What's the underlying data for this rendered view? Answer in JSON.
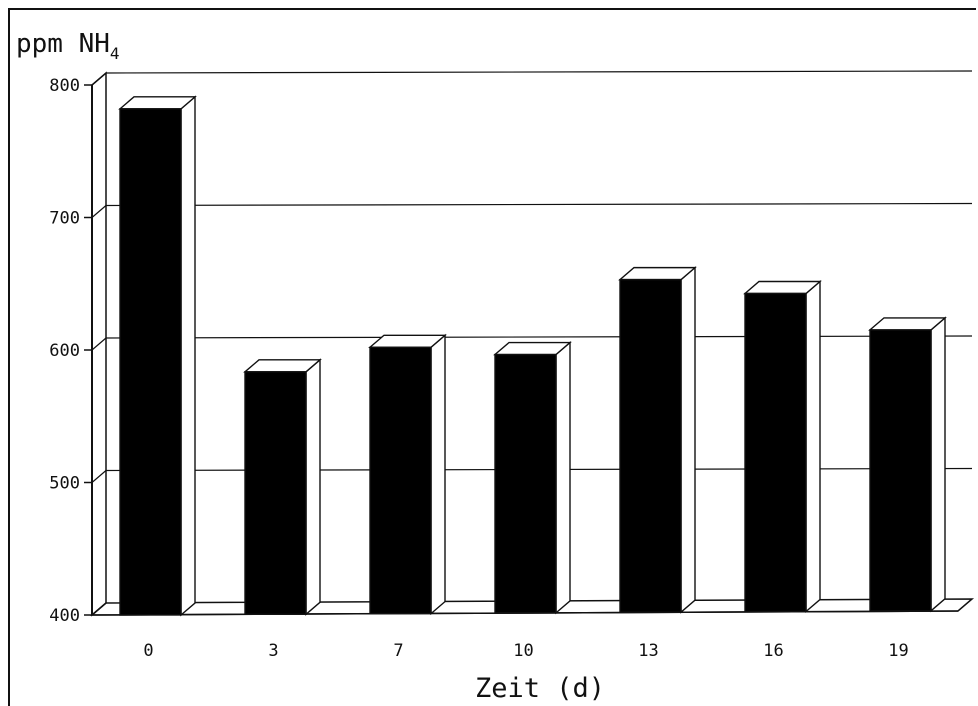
{
  "chart_data": {
    "type": "bar",
    "style": "3d",
    "ylabel_main": "ppm NH",
    "ylabel_sub": "4",
    "xlabel": "Zeit (d)",
    "categories": [
      "0",
      "3",
      "7",
      "10",
      "13",
      "16",
      "19"
    ],
    "values": [
      782,
      583,
      601,
      595,
      651,
      640,
      612
    ],
    "ylim": [
      400,
      800
    ],
    "yticks": [
      "400",
      "500",
      "600",
      "700",
      "800"
    ],
    "grid": true,
    "bar_color": "#000000",
    "side_color": "#ffffff",
    "legend": "none"
  }
}
